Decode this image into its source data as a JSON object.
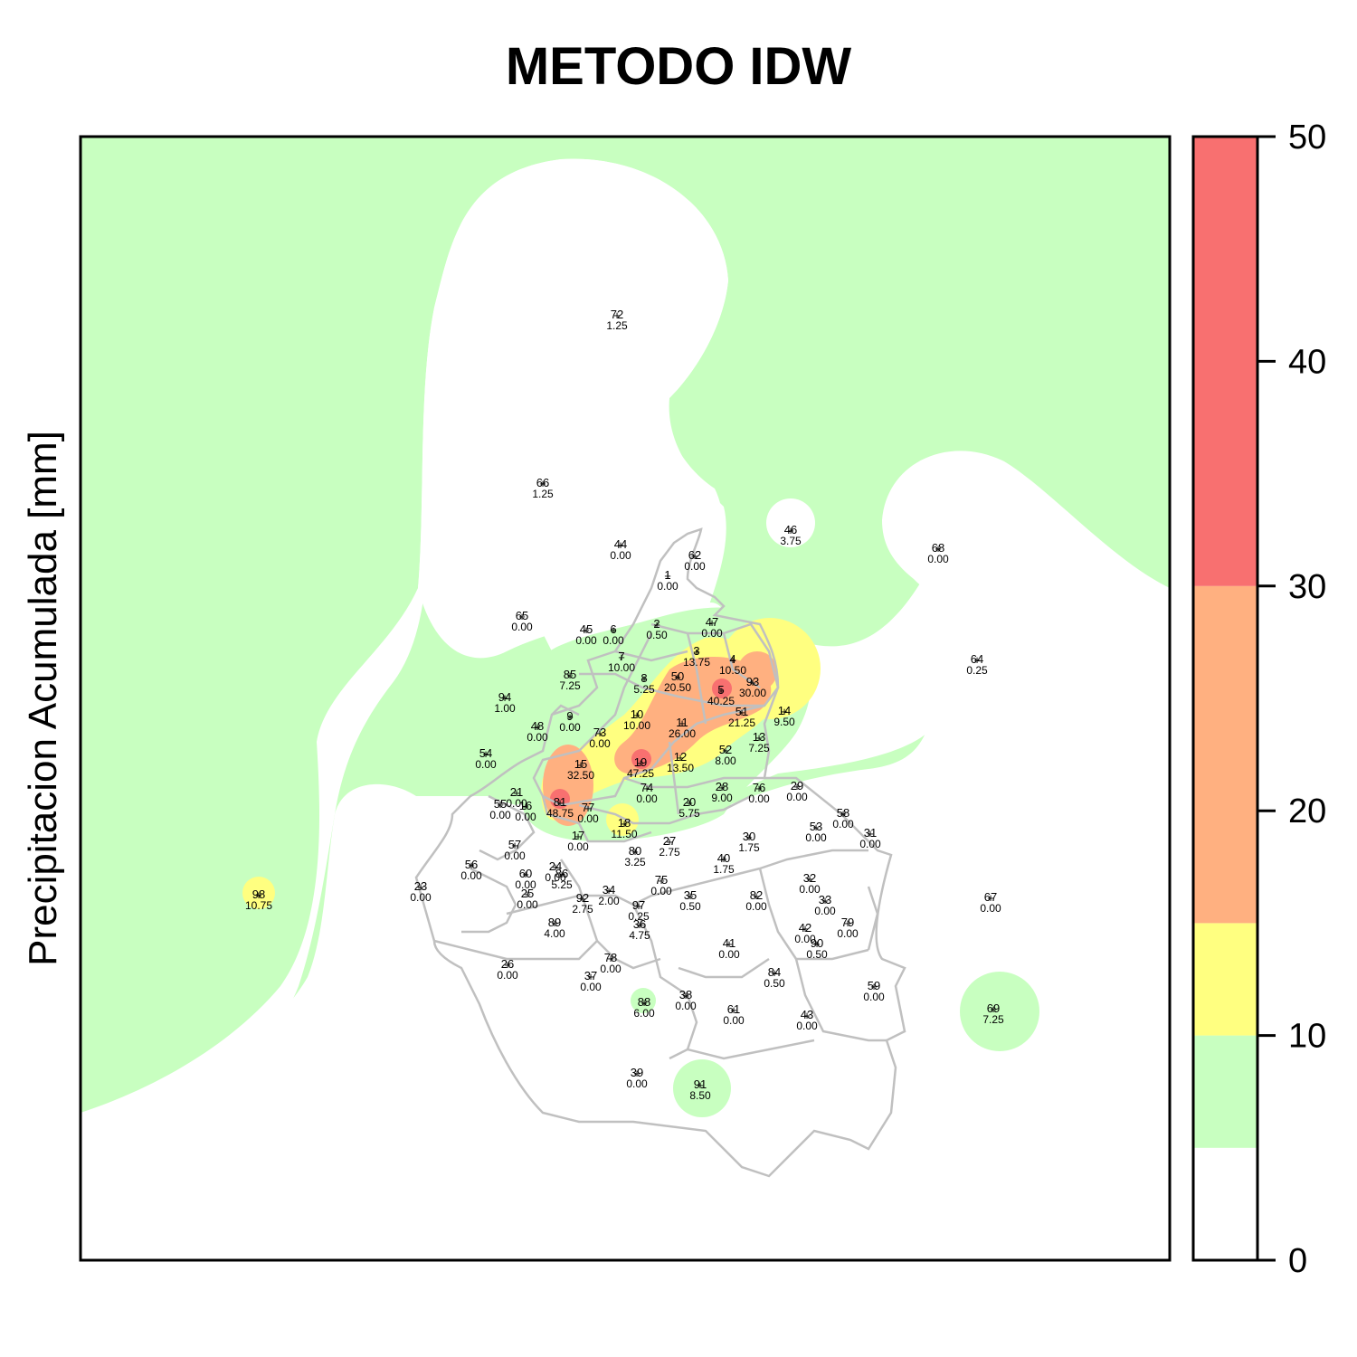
{
  "title": "METODO IDW",
  "ylabel": "Precipitacion Acumulada [mm]",
  "legend": {
    "ticks": [
      "0",
      "10",
      "20",
      "30",
      "40",
      "50"
    ],
    "breaks": [
      0,
      5,
      10,
      15,
      30,
      50
    ],
    "colors": [
      "#ffffff",
      "#c8ffc0",
      "#ffff80",
      "#ffb080",
      "#f87070"
    ]
  },
  "colors": {
    "boundary": "#c0c0c0",
    "low_zone": "#c8ffc0"
  },
  "stations": [
    {
      "id": "72",
      "val": "1.25"
    },
    {
      "id": "66",
      "val": "1.25"
    },
    {
      "id": "46",
      "val": "3.75"
    },
    {
      "id": "44",
      "val": "0.00"
    },
    {
      "id": "62",
      "val": "0.00"
    },
    {
      "id": "68",
      "val": "0.00"
    },
    {
      "id": "1",
      "val": "0.00"
    },
    {
      "id": "65",
      "val": "0.00"
    },
    {
      "id": "45",
      "val": "0.00"
    },
    {
      "id": "6",
      "val": "0.00"
    },
    {
      "id": "2",
      "val": "0.50"
    },
    {
      "id": "47",
      "val": "0.00"
    },
    {
      "id": "7",
      "val": "10.00"
    },
    {
      "id": "3",
      "val": "13.75"
    },
    {
      "id": "4",
      "val": "10.50"
    },
    {
      "id": "64",
      "val": "0.25"
    },
    {
      "id": "85",
      "val": "7.25"
    },
    {
      "id": "8",
      "val": "5.25"
    },
    {
      "id": "50",
      "val": "20.50"
    },
    {
      "id": "5",
      "val": "40.25"
    },
    {
      "id": "93",
      "val": "30.00"
    },
    {
      "id": "94",
      "val": "1.00"
    },
    {
      "id": "14",
      "val": "9.50"
    },
    {
      "id": "51",
      "val": "21.25"
    },
    {
      "id": "9",
      "val": "0.00"
    },
    {
      "id": "10",
      "val": "10.00"
    },
    {
      "id": "11",
      "val": "26.00"
    },
    {
      "id": "48",
      "val": "0.00"
    },
    {
      "id": "73",
      "val": "0.00"
    },
    {
      "id": "13",
      "val": "7.25"
    },
    {
      "id": "54",
      "val": "0.00"
    },
    {
      "id": "52",
      "val": "8.00"
    },
    {
      "id": "15",
      "val": "32.50"
    },
    {
      "id": "19",
      "val": "47.25"
    },
    {
      "id": "12",
      "val": "13.50"
    },
    {
      "id": "28",
      "val": "9.00"
    },
    {
      "id": "29",
      "val": "0.00"
    },
    {
      "id": "76",
      "val": "0.00"
    },
    {
      "id": "74",
      "val": "0.00"
    },
    {
      "id": "21",
      "val": "0.00"
    },
    {
      "id": "55",
      "val": "0.00"
    },
    {
      "id": "16",
      "val": "0.00"
    },
    {
      "id": "81",
      "val": "48.75"
    },
    {
      "id": "77",
      "val": "0.00"
    },
    {
      "id": "20",
      "val": "5.75"
    },
    {
      "id": "58",
      "val": "0.00"
    },
    {
      "id": "53",
      "val": "0.00"
    },
    {
      "id": "18",
      "val": "11.50"
    },
    {
      "id": "31",
      "val": "0.00"
    },
    {
      "id": "17",
      "val": "0.00"
    },
    {
      "id": "30",
      "val": "1.75"
    },
    {
      "id": "57",
      "val": "0.00"
    },
    {
      "id": "27",
      "val": "2.75"
    },
    {
      "id": "80",
      "val": "3.25"
    },
    {
      "id": "40",
      "val": "1.75"
    },
    {
      "id": "56",
      "val": "0.00"
    },
    {
      "id": "24",
      "val": "0.00"
    },
    {
      "id": "86",
      "val": "5.25"
    },
    {
      "id": "60",
      "val": "0.00"
    },
    {
      "id": "98",
      "val": "10.75"
    },
    {
      "id": "23",
      "val": "0.00"
    },
    {
      "id": "75",
      "val": "0.00"
    },
    {
      "id": "32",
      "val": "0.00"
    },
    {
      "id": "34",
      "val": "2.00"
    },
    {
      "id": "25",
      "val": "0.00"
    },
    {
      "id": "92",
      "val": "2.75"
    },
    {
      "id": "82",
      "val": "0.00"
    },
    {
      "id": "35",
      "val": "0.50"
    },
    {
      "id": "33",
      "val": "0.00"
    },
    {
      "id": "67",
      "val": "0.00"
    },
    {
      "id": "97",
      "val": "0.25"
    },
    {
      "id": "79",
      "val": "0.00"
    },
    {
      "id": "89",
      "val": "4.00"
    },
    {
      "id": "36",
      "val": "4.75"
    },
    {
      "id": "42",
      "val": "0.00"
    },
    {
      "id": "90",
      "val": "0.50"
    },
    {
      "id": "41",
      "val": "0.00"
    },
    {
      "id": "26",
      "val": "0.00"
    },
    {
      "id": "78",
      "val": "0.00"
    },
    {
      "id": "37",
      "val": "0.00"
    },
    {
      "id": "84",
      "val": "0.50"
    },
    {
      "id": "59",
      "val": "0.00"
    },
    {
      "id": "88",
      "val": "6.00"
    },
    {
      "id": "38",
      "val": "0.00"
    },
    {
      "id": "61",
      "val": "0.00"
    },
    {
      "id": "43",
      "val": "0.00"
    },
    {
      "id": "69",
      "val": "7.25"
    },
    {
      "id": "39",
      "val": "0.00"
    },
    {
      "id": "91",
      "val": "8.50"
    }
  ]
}
